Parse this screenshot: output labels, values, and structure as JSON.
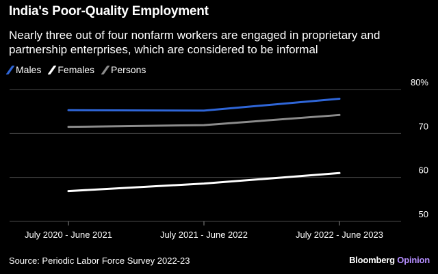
{
  "header": {
    "title": "India's Poor-Quality Employment",
    "subtitle": "Nearly three out of four nonfarm workers are engaged in proprietary and partnership enterprises, which are considered to be informal"
  },
  "chart_data": {
    "type": "line",
    "categories": [
      "July 2020 - June 2021",
      "July 2021 - June 2022",
      "July 2022 - June 2023"
    ],
    "series": [
      {
        "name": "Males",
        "color": "#2f66d8",
        "values": [
          75.3,
          75.2,
          77.9
        ]
      },
      {
        "name": "Females",
        "color": "#ffffff",
        "values": [
          56.9,
          58.6,
          61.0
        ]
      },
      {
        "name": "Persons",
        "color": "#8c8c8c",
        "values": [
          71.5,
          71.9,
          74.2
        ]
      }
    ],
    "yticks": [
      {
        "value": 80,
        "label": "80%"
      },
      {
        "value": 70,
        "label": "70"
      },
      {
        "value": 60,
        "label": "60"
      },
      {
        "value": 50,
        "label": "50"
      }
    ],
    "ylim": [
      47,
      80
    ],
    "title": "India's Poor-Quality Employment",
    "xlabel": "",
    "ylabel": "",
    "legend": "top-left",
    "grid": true
  },
  "footer": {
    "source": "Source: Periodic Labor Force Survey 2022-23",
    "brand": "Bloomberg",
    "brand_suffix": "Opinion"
  }
}
